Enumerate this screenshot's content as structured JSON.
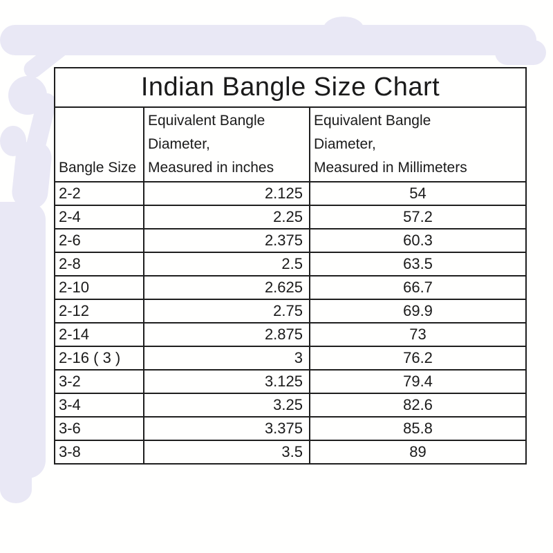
{
  "colors": {
    "decor": "#e9e8f5",
    "border": "#1e1e1e",
    "text": "#1a1a1a",
    "table_bg": "#fffffe"
  },
  "chart_data": {
    "type": "table",
    "title": "Indian Bangle Size Chart",
    "columns": [
      "Bangle Size",
      "Equivalent Bangle\nDiameter,\nMeasured in inches",
      "Equivalent Bangle\nDiameter,\nMeasured in Millimeters"
    ],
    "column_keys": [
      "bangle_size",
      "diameter_inches",
      "diameter_mm"
    ],
    "rows": [
      [
        "2-2",
        "2.125",
        "54"
      ],
      [
        "2-4",
        "2.25",
        "57.2"
      ],
      [
        "2-6",
        "2.375",
        "60.3"
      ],
      [
        "2-8",
        "2.5",
        "63.5"
      ],
      [
        "2-10",
        "2.625",
        "66.7"
      ],
      [
        "2-12",
        "2.75",
        "69.9"
      ],
      [
        "2-14",
        "2.875",
        "73"
      ],
      [
        "2-16 ( 3 )",
        "3",
        "76.2"
      ],
      [
        "3-2",
        "3.125",
        "79.4"
      ],
      [
        "3-4",
        "3.25",
        "82.6"
      ],
      [
        "3-6",
        "3.375",
        "85.8"
      ],
      [
        "3-8",
        "3.5",
        "89"
      ]
    ]
  }
}
